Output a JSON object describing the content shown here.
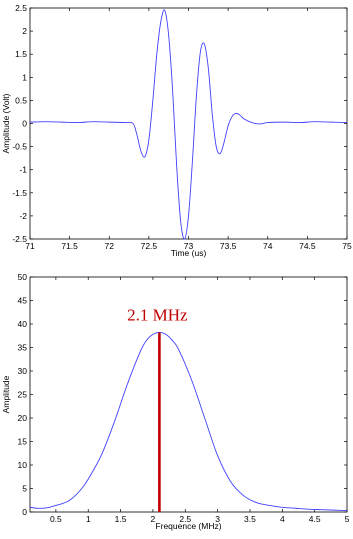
{
  "chart_data": [
    {
      "type": "line",
      "title": "",
      "xlabel": "Time (us)",
      "ylabel": "Amplitude (Volt)",
      "xlim": [
        71,
        75
      ],
      "ylim": [
        -2.5,
        2.5
      ],
      "xticks": [
        "71",
        "71.5",
        "72",
        "72.5",
        "73",
        "73.5",
        "74",
        "74.5",
        "75"
      ],
      "yticks": [
        "-2.5",
        "-2",
        "-1.5",
        "-1",
        "-0.5",
        "0",
        "0.5",
        "1",
        "1.5",
        "2",
        "2.5"
      ],
      "grid": false,
      "color": "#4040ff",
      "series": [
        {
          "x": [
            71.0,
            71.2,
            71.4,
            71.6,
            71.8,
            72.0,
            72.2,
            72.3,
            72.35,
            72.4,
            72.45,
            72.5,
            72.55,
            72.6,
            72.65,
            72.7,
            72.75,
            72.8,
            72.85,
            72.9,
            72.95,
            73.0,
            73.05,
            73.1,
            73.15,
            73.2,
            73.25,
            73.3,
            73.35,
            73.4,
            73.45,
            73.5,
            73.55,
            73.6,
            73.65,
            73.7,
            73.8,
            73.9,
            74.0,
            74.2,
            74.4,
            74.6,
            74.8,
            75.0
          ],
          "y": [
            0.03,
            0.04,
            0.03,
            0.02,
            0.04,
            0.03,
            0.02,
            0.0,
            -0.25,
            -0.6,
            -0.72,
            -0.35,
            0.5,
            1.5,
            2.2,
            2.45,
            1.9,
            0.7,
            -0.9,
            -2.1,
            -2.5,
            -2.0,
            -0.8,
            0.6,
            1.55,
            1.72,
            1.2,
            0.2,
            -0.5,
            -0.65,
            -0.4,
            -0.05,
            0.15,
            0.22,
            0.18,
            0.1,
            0.02,
            -0.01,
            0.02,
            0.03,
            0.02,
            0.04,
            0.03,
            0.02
          ]
        }
      ]
    },
    {
      "type": "line",
      "title": "",
      "xlabel": "Frequence (MHz)",
      "ylabel": "Amplitude",
      "xlim": [
        0.1,
        5
      ],
      "ylim": [
        0,
        50
      ],
      "xticks": [
        "0.5",
        "1",
        "1.5",
        "2",
        "2.5",
        "3",
        "3.5",
        "4",
        "4.5",
        "5"
      ],
      "yticks": [
        "0",
        "5",
        "10",
        "15",
        "20",
        "25",
        "30",
        "35",
        "40",
        "45",
        "50"
      ],
      "grid": false,
      "color": "#4040ff",
      "series": [
        {
          "x": [
            0.1,
            0.2,
            0.3,
            0.4,
            0.5,
            0.6,
            0.7,
            0.8,
            0.9,
            1.0,
            1.2,
            1.4,
            1.6,
            1.8,
            1.9,
            2.0,
            2.1,
            2.2,
            2.3,
            2.4,
            2.6,
            2.8,
            3.0,
            3.2,
            3.4,
            3.6,
            3.8,
            4.0,
            4.2,
            4.4,
            4.6,
            4.8,
            5.0
          ],
          "y": [
            1.0,
            0.8,
            0.8,
            1.0,
            1.4,
            1.8,
            2.4,
            3.5,
            5.0,
            7.0,
            12.0,
            19.0,
            27.0,
            34.0,
            36.5,
            37.8,
            38.2,
            37.8,
            36.5,
            34.5,
            28.0,
            20.0,
            12.0,
            6.5,
            3.5,
            2.0,
            1.4,
            1.0,
            0.8,
            0.6,
            0.5,
            0.4,
            0.3
          ]
        }
      ],
      "annotation": {
        "text": "2.1 MHz",
        "x": 2.1,
        "y_from": 0,
        "y_to": 38.2,
        "color": "#c00000"
      }
    }
  ]
}
